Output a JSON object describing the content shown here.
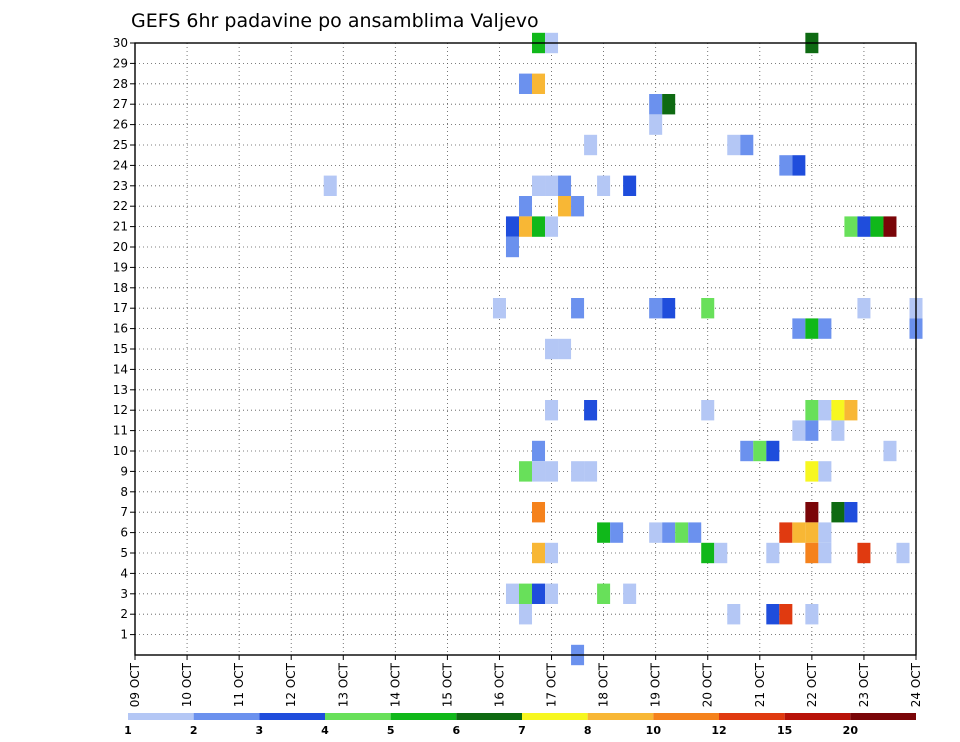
{
  "chart_data": {
    "type": "heatmap",
    "title": "GEFS 6hr padavine po ansamblima Valjevo",
    "xlabel": "",
    "ylabel": "",
    "x_tick_labels": [
      "09 OCT",
      "10 OCT",
      "11 OCT",
      "12 OCT",
      "13 OCT",
      "14 OCT",
      "15 OCT",
      "16 OCT",
      "17 OCT",
      "18 OCT",
      "19 OCT",
      "20 OCT",
      "21 OCT",
      "22 OCT",
      "23 OCT",
      "24 OCT"
    ],
    "y_tick_labels": [
      "1",
      "2",
      "3",
      "4",
      "5",
      "6",
      "7",
      "8",
      "9",
      "10",
      "11",
      "12",
      "13",
      "14",
      "15",
      "16",
      "17",
      "18",
      "19",
      "20",
      "21",
      "22",
      "23",
      "24",
      "25",
      "26",
      "27",
      "28",
      "29",
      "30"
    ],
    "x_unit": "6-hour step index from 09 OCT (4 steps per day)",
    "xlim": [
      0,
      60
    ],
    "ylim": [
      0,
      30
    ],
    "grid": true,
    "legend_position": "bottom",
    "legend": {
      "colors": [
        "#b4c7f5",
        "#6b91ee",
        "#1f4ddc",
        "#68e05a",
        "#10b81a",
        "#0e6a12",
        "#f7f71f",
        "#f8b735",
        "#f5821c",
        "#e03a10",
        "#b81208",
        "#7a0508"
      ],
      "labels": [
        "1",
        "2",
        "3",
        "4",
        "5",
        "6",
        "7",
        "8",
        "10",
        "12",
        "15",
        "20"
      ]
    },
    "cells": [
      {
        "x": 34,
        "y": 0,
        "v": 2
      },
      {
        "x": 15,
        "y": 23,
        "v": 1
      },
      {
        "x": 31,
        "y": 30,
        "v": 5
      },
      {
        "x": 32,
        "y": 30,
        "v": 1
      },
      {
        "x": 52,
        "y": 30,
        "v": 6
      },
      {
        "x": 30,
        "y": 28,
        "v": 2
      },
      {
        "x": 31,
        "y": 28,
        "v": 8
      },
      {
        "x": 40,
        "y": 27,
        "v": 2
      },
      {
        "x": 41,
        "y": 27,
        "v": 6
      },
      {
        "x": 40,
        "y": 26,
        "v": 1
      },
      {
        "x": 35,
        "y": 25,
        "v": 1
      },
      {
        "x": 46,
        "y": 25,
        "v": 1
      },
      {
        "x": 47,
        "y": 25,
        "v": 2
      },
      {
        "x": 50,
        "y": 24,
        "v": 2
      },
      {
        "x": 51,
        "y": 24,
        "v": 3
      },
      {
        "x": 31,
        "y": 23,
        "v": 1
      },
      {
        "x": 32,
        "y": 23,
        "v": 1
      },
      {
        "x": 33,
        "y": 23,
        "v": 2
      },
      {
        "x": 36,
        "y": 23,
        "v": 1
      },
      {
        "x": 38,
        "y": 23,
        "v": 3
      },
      {
        "x": 30,
        "y": 22,
        "v": 2
      },
      {
        "x": 33,
        "y": 22,
        "v": 8
      },
      {
        "x": 34,
        "y": 22,
        "v": 2
      },
      {
        "x": 29,
        "y": 21,
        "v": 3
      },
      {
        "x": 30,
        "y": 21,
        "v": 8
      },
      {
        "x": 31,
        "y": 21,
        "v": 5
      },
      {
        "x": 32,
        "y": 21,
        "v": 1
      },
      {
        "x": 55,
        "y": 21,
        "v": 4
      },
      {
        "x": 56,
        "y": 21,
        "v": 3
      },
      {
        "x": 57,
        "y": 21,
        "v": 5
      },
      {
        "x": 58,
        "y": 21,
        "v": 20
      },
      {
        "x": 29,
        "y": 20,
        "v": 2
      },
      {
        "x": 28,
        "y": 17,
        "v": 1
      },
      {
        "x": 34,
        "y": 17,
        "v": 2
      },
      {
        "x": 40,
        "y": 17,
        "v": 2
      },
      {
        "x": 41,
        "y": 17,
        "v": 3
      },
      {
        "x": 44,
        "y": 17,
        "v": 4
      },
      {
        "x": 56,
        "y": 17,
        "v": 1
      },
      {
        "x": 60,
        "y": 17,
        "v": 1
      },
      {
        "x": 51,
        "y": 16,
        "v": 2
      },
      {
        "x": 52,
        "y": 16,
        "v": 5
      },
      {
        "x": 53,
        "y": 16,
        "v": 2
      },
      {
        "x": 60,
        "y": 16,
        "v": 2
      },
      {
        "x": 32,
        "y": 15,
        "v": 1
      },
      {
        "x": 33,
        "y": 15,
        "v": 1
      },
      {
        "x": 32,
        "y": 12,
        "v": 1
      },
      {
        "x": 35,
        "y": 12,
        "v": 3
      },
      {
        "x": 44,
        "y": 12,
        "v": 1
      },
      {
        "x": 52,
        "y": 12,
        "v": 4
      },
      {
        "x": 53,
        "y": 12,
        "v": 1
      },
      {
        "x": 54,
        "y": 12,
        "v": 7
      },
      {
        "x": 55,
        "y": 12,
        "v": 8
      },
      {
        "x": 51,
        "y": 11,
        "v": 1
      },
      {
        "x": 52,
        "y": 11,
        "v": 2
      },
      {
        "x": 54,
        "y": 11,
        "v": 1
      },
      {
        "x": 31,
        "y": 10,
        "v": 2
      },
      {
        "x": 47,
        "y": 10,
        "v": 2
      },
      {
        "x": 48,
        "y": 10,
        "v": 4
      },
      {
        "x": 49,
        "y": 10,
        "v": 3
      },
      {
        "x": 58,
        "y": 10,
        "v": 1
      },
      {
        "x": 30,
        "y": 9,
        "v": 4
      },
      {
        "x": 31,
        "y": 9,
        "v": 1
      },
      {
        "x": 32,
        "y": 9,
        "v": 1
      },
      {
        "x": 34,
        "y": 9,
        "v": 1
      },
      {
        "x": 35,
        "y": 9,
        "v": 1
      },
      {
        "x": 52,
        "y": 9,
        "v": 7
      },
      {
        "x": 53,
        "y": 9,
        "v": 1
      },
      {
        "x": 31,
        "y": 7,
        "v": 10
      },
      {
        "x": 52,
        "y": 7,
        "v": 20
      },
      {
        "x": 54,
        "y": 7,
        "v": 6
      },
      {
        "x": 55,
        "y": 7,
        "v": 3
      },
      {
        "x": 36,
        "y": 6,
        "v": 5
      },
      {
        "x": 37,
        "y": 6,
        "v": 2
      },
      {
        "x": 40,
        "y": 6,
        "v": 1
      },
      {
        "x": 41,
        "y": 6,
        "v": 2
      },
      {
        "x": 42,
        "y": 6,
        "v": 4
      },
      {
        "x": 43,
        "y": 6,
        "v": 2
      },
      {
        "x": 50,
        "y": 6,
        "v": 12
      },
      {
        "x": 51,
        "y": 6,
        "v": 8
      },
      {
        "x": 52,
        "y": 6,
        "v": 8
      },
      {
        "x": 53,
        "y": 6,
        "v": 1
      },
      {
        "x": 31,
        "y": 5,
        "v": 8
      },
      {
        "x": 32,
        "y": 5,
        "v": 1
      },
      {
        "x": 44,
        "y": 5,
        "v": 5
      },
      {
        "x": 45,
        "y": 5,
        "v": 1
      },
      {
        "x": 49,
        "y": 5,
        "v": 1
      },
      {
        "x": 52,
        "y": 5,
        "v": 10
      },
      {
        "x": 53,
        "y": 5,
        "v": 1
      },
      {
        "x": 56,
        "y": 5,
        "v": 12
      },
      {
        "x": 59,
        "y": 5,
        "v": 1
      },
      {
        "x": 29,
        "y": 3,
        "v": 1
      },
      {
        "x": 30,
        "y": 3,
        "v": 4
      },
      {
        "x": 31,
        "y": 3,
        "v": 3
      },
      {
        "x": 32,
        "y": 3,
        "v": 1
      },
      {
        "x": 36,
        "y": 3,
        "v": 4
      },
      {
        "x": 38,
        "y": 3,
        "v": 1
      },
      {
        "x": 30,
        "y": 2,
        "v": 1
      },
      {
        "x": 46,
        "y": 2,
        "v": 1
      },
      {
        "x": 49,
        "y": 2,
        "v": 3
      },
      {
        "x": 50,
        "y": 2,
        "v": 12
      },
      {
        "x": 52,
        "y": 2,
        "v": 1
      }
    ]
  }
}
